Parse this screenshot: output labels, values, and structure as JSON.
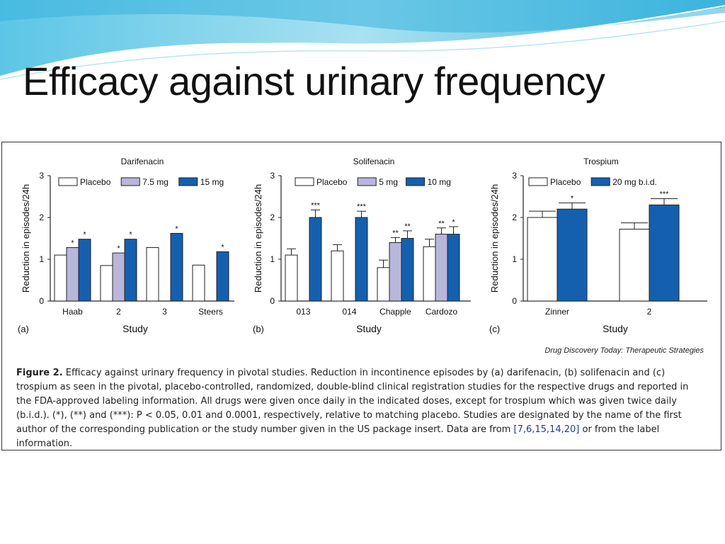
{
  "slide": {
    "title": "Efficacy against urinary frequency"
  },
  "figure": {
    "credit": "Drug Discovery Today: Therapeutic Strategies",
    "caption_label": "Figure 2.",
    "caption_text": "Efficacy against urinary frequency in pivotal studies. Reduction in incontinence episodes by (a) darifenacin, (b) solifenacin and (c) trospium as seen in the pivotal, placebo-controlled, randomized, double-blind clinical registration studies for the respective drugs and reported in the FDA-approved labeling information. All drugs were given once daily in the indicated doses, except for trospium which was given twice daily (b.i.d.). (*), (**) and (***): P < 0.05, 0.01 and 0.0001, respectively, relative to matching placebo. Studies are designated by the name of the first author of the corresponding publication or the study number given in the US package insert. Data are from",
    "caption_refs": "[7,6,15,14,20]",
    "caption_tail": "or from the label information."
  },
  "colors": {
    "placebo": "#ffffff",
    "low_dose": "#b9b6dc",
    "high_dose": "#1560ae",
    "outline": "#222222"
  },
  "chart_data": [
    {
      "type": "bar",
      "panel": "(a)",
      "title": "Darifenacin",
      "xlabel": "Study",
      "ylabel": "Reduction in episodes/24h",
      "ylim": [
        0,
        3
      ],
      "yticks": [
        0,
        1,
        2,
        3
      ],
      "categories": [
        "Haab",
        "2",
        "3",
        "Steers"
      ],
      "series": [
        {
          "name": "Placebo",
          "color": "#ffffff",
          "values": [
            1.1,
            0.85,
            1.28,
            0.86
          ],
          "errors": [
            null,
            null,
            null,
            null
          ],
          "sig": [
            "",
            "",
            "",
            ""
          ]
        },
        {
          "name": "7.5 mg",
          "color": "#b9b6dc",
          "values": [
            1.28,
            1.15,
            null,
            null
          ],
          "errors": [
            null,
            null,
            null,
            null
          ],
          "sig": [
            "*",
            "*",
            "",
            ""
          ]
        },
        {
          "name": "15 mg",
          "color": "#1560ae",
          "values": [
            1.48,
            1.48,
            1.62,
            1.18
          ],
          "errors": [
            null,
            null,
            null,
            null
          ],
          "sig": [
            "*",
            "*",
            "*",
            "*"
          ]
        }
      ]
    },
    {
      "type": "bar",
      "panel": "(b)",
      "title": "Solifenacin",
      "xlabel": "Study",
      "ylabel": "Reduction in episodes/24h",
      "ylim": [
        0,
        3
      ],
      "yticks": [
        0,
        1,
        2,
        3
      ],
      "categories": [
        "013",
        "014",
        "Chapple",
        "Cardozo"
      ],
      "series": [
        {
          "name": "Placebo",
          "color": "#ffffff",
          "values": [
            1.1,
            1.2,
            0.8,
            1.3
          ],
          "errors": [
            0.15,
            0.15,
            0.18,
            0.18
          ],
          "sig": [
            "",
            "",
            "",
            ""
          ]
        },
        {
          "name": "5 mg",
          "color": "#b9b6dc",
          "values": [
            null,
            null,
            1.4,
            1.6
          ],
          "errors": [
            null,
            null,
            0.12,
            0.15
          ],
          "sig": [
            "",
            "",
            "**",
            "**"
          ]
        },
        {
          "name": "10 mg",
          "color": "#1560ae",
          "values": [
            2.0,
            2.0,
            1.5,
            1.6
          ],
          "errors": [
            0.18,
            0.15,
            0.18,
            0.18
          ],
          "sig": [
            "***",
            "***",
            "**",
            "*"
          ]
        }
      ]
    },
    {
      "type": "bar",
      "panel": "(c)",
      "title": "Trospium",
      "xlabel": "Study",
      "ylabel": "Reduction in episodes/24h",
      "ylim": [
        0,
        3
      ],
      "yticks": [
        0,
        1,
        2,
        3
      ],
      "categories": [
        "Zinner",
        "2"
      ],
      "series": [
        {
          "name": "Placebo",
          "color": "#ffffff",
          "values": [
            2.0,
            1.72
          ],
          "errors": [
            0.15,
            0.15
          ],
          "sig": [
            "",
            ""
          ]
        },
        {
          "name": "20 mg b.i.d.",
          "color": "#1560ae",
          "values": [
            2.2,
            2.3
          ],
          "errors": [
            0.15,
            0.15
          ],
          "sig": [
            "*",
            "***"
          ]
        }
      ]
    }
  ]
}
